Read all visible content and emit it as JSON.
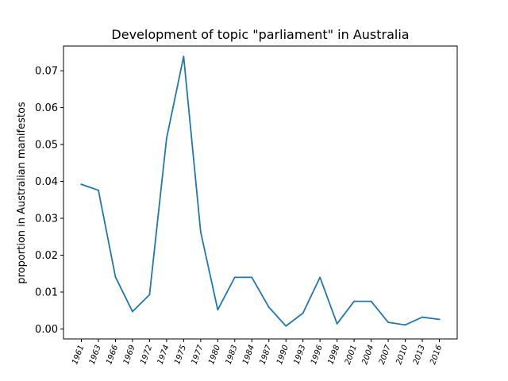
{
  "chart_data": {
    "type": "line",
    "title": "Development of topic \"parliament\" in Australia",
    "xlabel": "",
    "ylabel": "proportion in Australian manifestos",
    "categories": [
      "1961",
      "1963",
      "1966",
      "1969",
      "1972",
      "1974",
      "1975",
      "1977",
      "1980",
      "1983",
      "1984",
      "1987",
      "1990",
      "1993",
      "1996",
      "1998",
      "2001",
      "2004",
      "2007",
      "2010",
      "2013",
      "2016"
    ],
    "series": [
      {
        "color": "#1f77b4",
        "values": [
          0.0392,
          0.0376,
          0.0141,
          0.0047,
          0.0093,
          0.0517,
          0.0739,
          0.0263,
          0.0052,
          0.014,
          0.014,
          0.0059,
          0.0008,
          0.0043,
          0.014,
          0.0014,
          0.0075,
          0.0075,
          0.0018,
          0.0011,
          0.0032,
          0.0026
        ]
      }
    ],
    "yticks": [
      "0.00",
      "0.01",
      "0.02",
      "0.03",
      "0.04",
      "0.05",
      "0.06",
      "0.07"
    ],
    "ylim": [
      -0.0027,
      0.0767
    ],
    "grid": false
  }
}
